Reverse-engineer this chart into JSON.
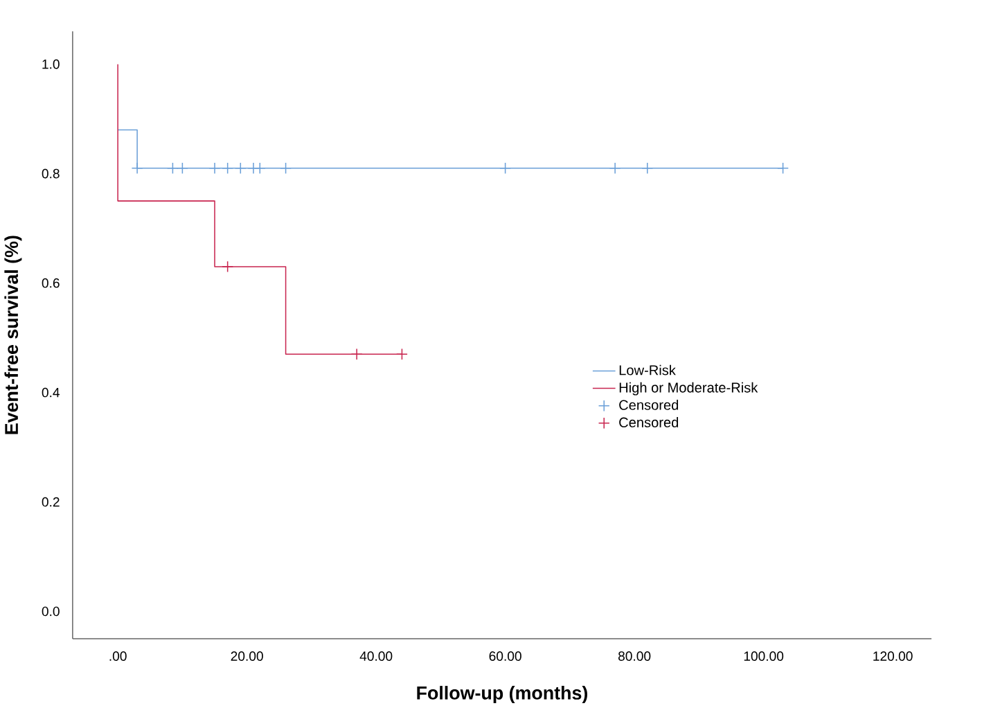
{
  "chart_data": {
    "type": "step",
    "xlabel": "Follow-up (months)",
    "ylabel": "Event-free survival (%)",
    "xlim": [
      -7,
      126
    ],
    "ylim": [
      -0.05,
      1.06
    ],
    "xticks": [
      {
        "value": 0,
        "label": ".00"
      },
      {
        "value": 20,
        "label": "20.00"
      },
      {
        "value": 40,
        "label": "40.00"
      },
      {
        "value": 60,
        "label": "60.00"
      },
      {
        "value": 80,
        "label": "80.00"
      },
      {
        "value": 100,
        "label": "100.00"
      },
      {
        "value": 120,
        "label": "120.00"
      }
    ],
    "yticks": [
      {
        "value": 0,
        "label": "0.0"
      },
      {
        "value": 0.2,
        "label": "0.2"
      },
      {
        "value": 0.4,
        "label": "0.4"
      },
      {
        "value": 0.6,
        "label": "0.6"
      },
      {
        "value": 0.8,
        "label": "0.8"
      },
      {
        "value": 1.0,
        "label": "1.0"
      }
    ],
    "grid": false,
    "legend": "right",
    "line_style": "solid",
    "series": [
      {
        "name": "Low-Risk",
        "color": "#6a9fd8",
        "x": [
          0,
          3,
          103
        ],
        "values": [
          0.88,
          0.81,
          0.81
        ]
      },
      {
        "name": "High or Moderate-Risk",
        "color": "#c8254f",
        "x": [
          0,
          0,
          15,
          26,
          44
        ],
        "values": [
          1.0,
          0.75,
          0.63,
          0.47,
          0.47
        ]
      },
      {
        "name": "Censored",
        "type": "scatter",
        "marker": "cross",
        "color": "#6a9fd8",
        "x": [
          3,
          8.5,
          10,
          15,
          17,
          19,
          21,
          22,
          26,
          60,
          77,
          82,
          103
        ],
        "values": [
          0.81,
          0.81,
          0.81,
          0.81,
          0.81,
          0.81,
          0.81,
          0.81,
          0.81,
          0.81,
          0.81,
          0.81,
          0.81
        ]
      },
      {
        "name": "Censored",
        "type": "scatter",
        "marker": "cross",
        "color": "#c8254f",
        "x": [
          17,
          37,
          44
        ],
        "values": [
          0.63,
          0.47,
          0.47
        ]
      }
    ]
  }
}
